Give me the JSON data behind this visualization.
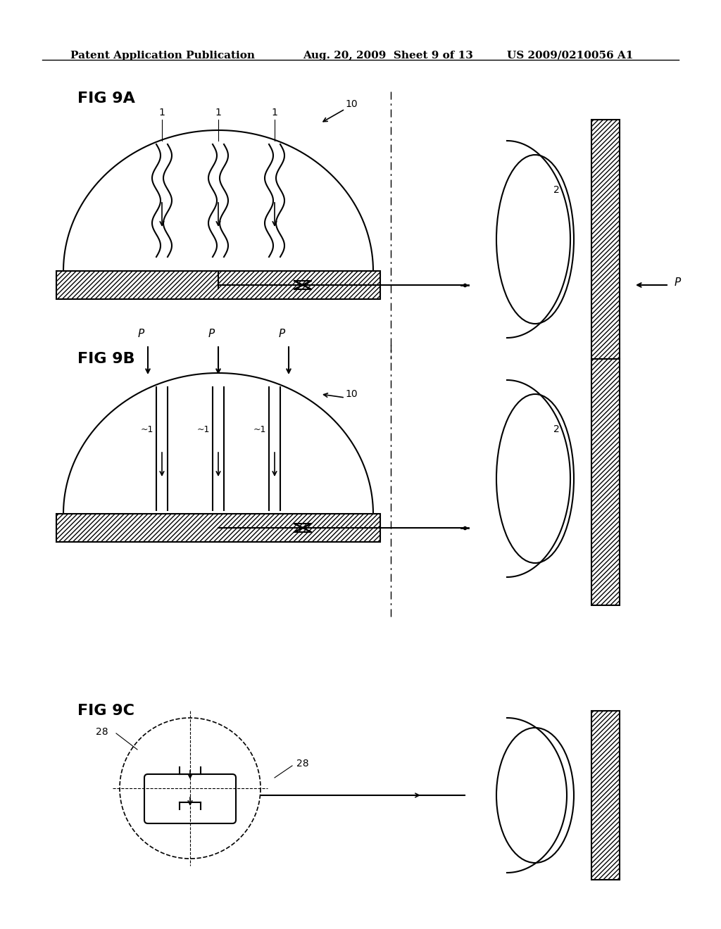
{
  "bg_color": "#ffffff",
  "text_color": "#000000",
  "header_left": "Patent Application Publication",
  "header_mid": "Aug. 20, 2009  Sheet 9 of 13",
  "header_right": "US 2009/0210056 A1",
  "fig_label_9A": "FIG 9A",
  "fig_label_9B": "FIG 9B",
  "fig_label_9C": "FIG 9C",
  "label_10_9A": "10",
  "label_1_9A": "1",
  "label_2_9A": "2",
  "label_P_9A": "P",
  "label_10_9B": "10",
  "label_1_9B": "1",
  "label_2_9B": "2",
  "label_P_9B": "P",
  "label_28_9C": "28",
  "line_color": "#000000",
  "hatch_color": "#000000"
}
